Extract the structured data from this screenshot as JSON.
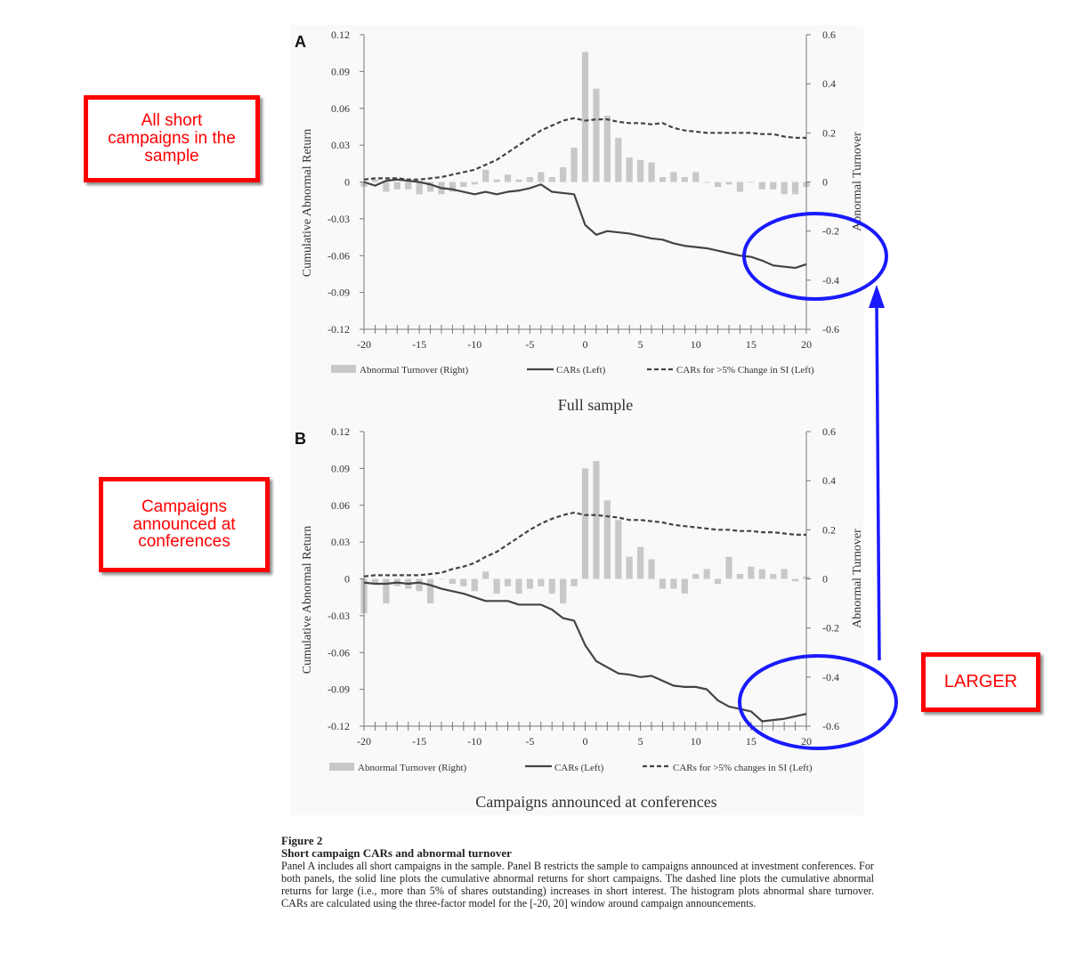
{
  "panels": [
    {
      "letter": "A",
      "subtitle": "Full sample",
      "left_axis_label": "Cumulative Abnormal Return",
      "right_axis_label": "Abnormal Turnover",
      "legend": {
        "bar": "Abnormal Turnover (Right)",
        "solid": "CARs (Left)",
        "dashed": "CARs for >5% Change in SI (Left)"
      }
    },
    {
      "letter": "B",
      "subtitle": "Campaigns announced at conferences",
      "left_axis_label": "Cumulative Abnormal Return",
      "right_axis_label": "Abnormal Turnover",
      "legend": {
        "bar": "Abnormal Turnover (Right)",
        "solid": "CARs (Left)",
        "dashed": "CARs for >5% changes in SI (Left)"
      }
    }
  ],
  "chart_data": [
    {
      "type": "bar+line",
      "title": "Full sample",
      "x": [
        -20,
        -19,
        -18,
        -17,
        -16,
        -15,
        -14,
        -13,
        -12,
        -11,
        -10,
        -9,
        -8,
        -7,
        -6,
        -5,
        -4,
        -3,
        -2,
        -1,
        0,
        1,
        2,
        3,
        4,
        5,
        6,
        7,
        8,
        9,
        10,
        11,
        12,
        13,
        14,
        15,
        16,
        17,
        18,
        19,
        20
      ],
      "xticks": [
        -20,
        -15,
        -10,
        -5,
        0,
        5,
        10,
        15,
        20
      ],
      "ylim_left": [
        -0.12,
        0.12
      ],
      "yticks_left": [
        "0.12",
        "0.09",
        "0.06",
        "0.03",
        "0",
        "-0.03",
        "-0.06",
        "-0.09",
        "-0.12"
      ],
      "ylim_right": [
        -0.6,
        0.6
      ],
      "yticks_right": [
        "0.6",
        "0.4",
        "0.2",
        "0",
        "-0.2",
        "-0.4",
        "-0.6"
      ],
      "ylabel_left": "Cumulative Abnormal Return",
      "ylabel_right": "Abnormal Turnover",
      "series": [
        {
          "name": "Abnormal Turnover (Right)",
          "kind": "bar",
          "axis": "right",
          "color": "#c8c8c8",
          "values": [
            -0.02,
            0.01,
            -0.04,
            -0.03,
            -0.03,
            -0.05,
            -0.04,
            -0.05,
            -0.04,
            -0.02,
            -0.01,
            0.05,
            0.01,
            0.03,
            0.01,
            0.02,
            0.04,
            0.02,
            0.06,
            0.14,
            0.53,
            0.38,
            0.27,
            0.18,
            0.1,
            0.09,
            0.08,
            0.02,
            0.04,
            0.02,
            0.04,
            0.0,
            -0.02,
            -0.01,
            -0.04,
            0.0,
            -0.03,
            -0.03,
            -0.05,
            -0.05,
            -0.02
          ]
        },
        {
          "name": "CARs (Left)",
          "kind": "line",
          "style": "solid",
          "axis": "left",
          "color": "#444444",
          "values": [
            0.0,
            -0.003,
            0.001,
            0.002,
            0.001,
            0.0,
            -0.002,
            -0.005,
            -0.006,
            -0.008,
            -0.01,
            -0.008,
            -0.01,
            -0.008,
            -0.007,
            -0.005,
            -0.002,
            -0.008,
            -0.009,
            -0.01,
            -0.035,
            -0.043,
            -0.04,
            -0.041,
            -0.042,
            -0.044,
            -0.046,
            -0.047,
            -0.05,
            -0.052,
            -0.053,
            -0.054,
            -0.056,
            -0.058,
            -0.06,
            -0.061,
            -0.064,
            -0.068,
            -0.069,
            -0.07,
            -0.067
          ]
        },
        {
          "name": "CARs for >5% Change in SI (Left)",
          "kind": "line",
          "style": "dashed",
          "axis": "left",
          "color": "#444444",
          "values": [
            0.002,
            0.003,
            0.003,
            0.003,
            0.002,
            0.002,
            0.003,
            0.004,
            0.006,
            0.008,
            0.01,
            0.014,
            0.018,
            0.024,
            0.03,
            0.036,
            0.042,
            0.046,
            0.05,
            0.052,
            0.05,
            0.051,
            0.051,
            0.049,
            0.048,
            0.048,
            0.047,
            0.048,
            0.044,
            0.042,
            0.041,
            0.04,
            0.04,
            0.04,
            0.04,
            0.04,
            0.039,
            0.039,
            0.037,
            0.036,
            0.036
          ]
        }
      ]
    },
    {
      "type": "bar+line",
      "title": "Campaigns announced at conferences",
      "x": [
        -20,
        -19,
        -18,
        -17,
        -16,
        -15,
        -14,
        -13,
        -12,
        -11,
        -10,
        -9,
        -8,
        -7,
        -6,
        -5,
        -4,
        -3,
        -2,
        -1,
        0,
        1,
        2,
        3,
        4,
        5,
        6,
        7,
        8,
        9,
        10,
        11,
        12,
        13,
        14,
        15,
        16,
        17,
        18,
        19,
        20
      ],
      "xticks": [
        -20,
        -15,
        -10,
        -5,
        0,
        5,
        10,
        15,
        20
      ],
      "ylim_left": [
        -0.12,
        0.12
      ],
      "yticks_left": [
        "0.12",
        "0.09",
        "0.06",
        "0.03",
        "0",
        "-0.03",
        "-0.06",
        "-0.09",
        "-0.12"
      ],
      "ylim_right": [
        -0.6,
        0.6
      ],
      "yticks_right": [
        "0.6",
        "0.4",
        "0.2",
        "0",
        "-0.2",
        "-0.4",
        "-0.6"
      ],
      "ylabel_left": "Cumulative Abnormal Return",
      "ylabel_right": "Abnormal Turnover",
      "series": [
        {
          "name": "Abnormal Turnover (Right)",
          "kind": "bar",
          "axis": "right",
          "color": "#c8c8c8",
          "values": [
            -0.14,
            -0.02,
            -0.1,
            -0.03,
            -0.04,
            -0.05,
            -0.1,
            0.0,
            -0.02,
            -0.03,
            -0.05,
            0.03,
            -0.06,
            -0.03,
            -0.06,
            -0.04,
            -0.03,
            -0.06,
            -0.1,
            -0.03,
            0.45,
            0.48,
            0.32,
            0.24,
            0.09,
            0.13,
            0.08,
            -0.04,
            -0.04,
            -0.06,
            0.02,
            0.04,
            -0.02,
            0.09,
            0.02,
            0.05,
            0.04,
            0.02,
            0.04,
            -0.01,
            0.01
          ]
        },
        {
          "name": "CARs (Left)",
          "kind": "line",
          "style": "solid",
          "axis": "left",
          "color": "#444444",
          "values": [
            -0.003,
            -0.004,
            -0.004,
            -0.003,
            -0.004,
            -0.003,
            -0.005,
            -0.008,
            -0.01,
            -0.012,
            -0.015,
            -0.018,
            -0.018,
            -0.018,
            -0.021,
            -0.021,
            -0.021,
            -0.025,
            -0.032,
            -0.034,
            -0.054,
            -0.067,
            -0.072,
            -0.077,
            -0.078,
            -0.08,
            -0.079,
            -0.083,
            -0.087,
            -0.088,
            -0.088,
            -0.09,
            -0.099,
            -0.104,
            -0.106,
            -0.108,
            -0.116,
            -0.115,
            -0.114,
            -0.112,
            -0.11
          ]
        },
        {
          "name": "CARs for >5% changes in SI (Left)",
          "kind": "line",
          "style": "dashed",
          "axis": "left",
          "color": "#444444",
          "values": [
            0.002,
            0.003,
            0.003,
            0.003,
            0.003,
            0.003,
            0.004,
            0.005,
            0.008,
            0.01,
            0.013,
            0.018,
            0.022,
            0.028,
            0.034,
            0.04,
            0.045,
            0.049,
            0.052,
            0.054,
            0.052,
            0.052,
            0.051,
            0.05,
            0.048,
            0.048,
            0.047,
            0.046,
            0.044,
            0.043,
            0.042,
            0.041,
            0.04,
            0.04,
            0.039,
            0.039,
            0.038,
            0.038,
            0.037,
            0.036,
            0.036
          ]
        }
      ]
    }
  ],
  "annotations": {
    "callout_all": [
      "All short",
      "campaigns in the",
      "sample"
    ],
    "callout_conf": [
      "Campaigns",
      "announced at",
      "conferences"
    ],
    "callout_larger": "LARGER",
    "callout_color": "#ff0000",
    "ellipse_color": "#1a1aff"
  },
  "caption": {
    "figure_label": "Figure 2",
    "title": "Short campaign CARs and abnormal turnover",
    "body": "Panel A includes all short campaigns in the sample. Panel B restricts the sample to campaigns announced at investment conferences. For both panels, the solid line plots the cumulative abnormal returns for short campaigns. The dashed line plots the cumulative abnormal returns for large (i.e., more than 5% of shares outstanding) increases in short interest. The histogram plots abnormal share turnover. CARs are calculated using the three-factor model for the [-20, 20] window around campaign announcements."
  }
}
